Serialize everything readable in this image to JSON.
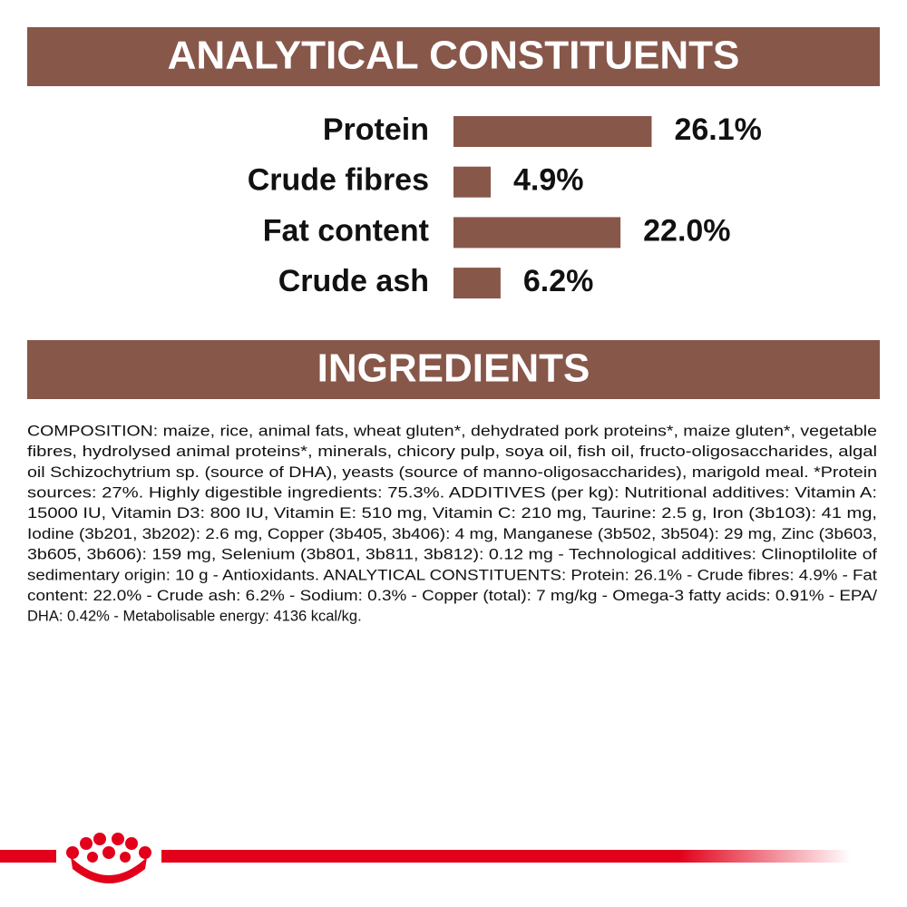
{
  "chart_data": {
    "type": "hbar",
    "title": "ANALYTICAL CONSTITUENTS",
    "categories": [
      "Protein",
      "Crude fibres",
      "Fat content",
      "Crude ash"
    ],
    "values": [
      26.1,
      4.9,
      22.0,
      6.2
    ],
    "value_labels": [
      "26.1%",
      "4.9%",
      "22.0%",
      "6.2%"
    ],
    "color": "#87574a"
  },
  "ingredients": {
    "title": "INGREDIENTS",
    "lines": [
      "COMPOSITION: maize, rice, animal fats, wheat gluten*, dehydrated pork proteins*, maize gluten*, vegetable",
      "fibres, hydrolysed animal proteins*, minerals, chicory pulp, soya oil, fish oil, fructo-oligosaccharides, algal",
      "oil Schizochytrium sp. (source of DHA), yeasts (source of manno-oligosaccharides), marigold meal. *Protein",
      "sources: 27%. Highly digestible ingredients: 75.3%. ADDITIVES (per kg): Nutritional additives: Vitamin A:",
      "15000 IU, Vitamin D3: 800 IU, Vitamin E: 510 mg, Vitamin C: 210 mg, Taurine: 2.5 g, Iron (3b103): 41 mg,",
      "Iodine (3b201, 3b202): 2.6 mg, Copper (3b405, 3b406): 4 mg, Manganese (3b502, 3b504): 29 mg, Zinc (3b603,",
      "3b605, 3b606): 159 mg, Selenium (3b801, 3b811, 3b812): 0.12 mg - Technological additives: Clinoptilolite of",
      "sedimentary origin: 10 g - Antioxidants. ANALYTICAL CONSTITUENTS: Protein: 26.1% - Crude fibres: 4.9% - Fat",
      "content: 22.0% - Crude ash: 6.2% - Sodium: 0.3% - Copper (total): 7 mg/kg - Omega-3 fatty acids: 0.91% - EPA/",
      "DHA: 0.42% - Metabolisable energy: 4136 kcal/kg."
    ]
  }
}
